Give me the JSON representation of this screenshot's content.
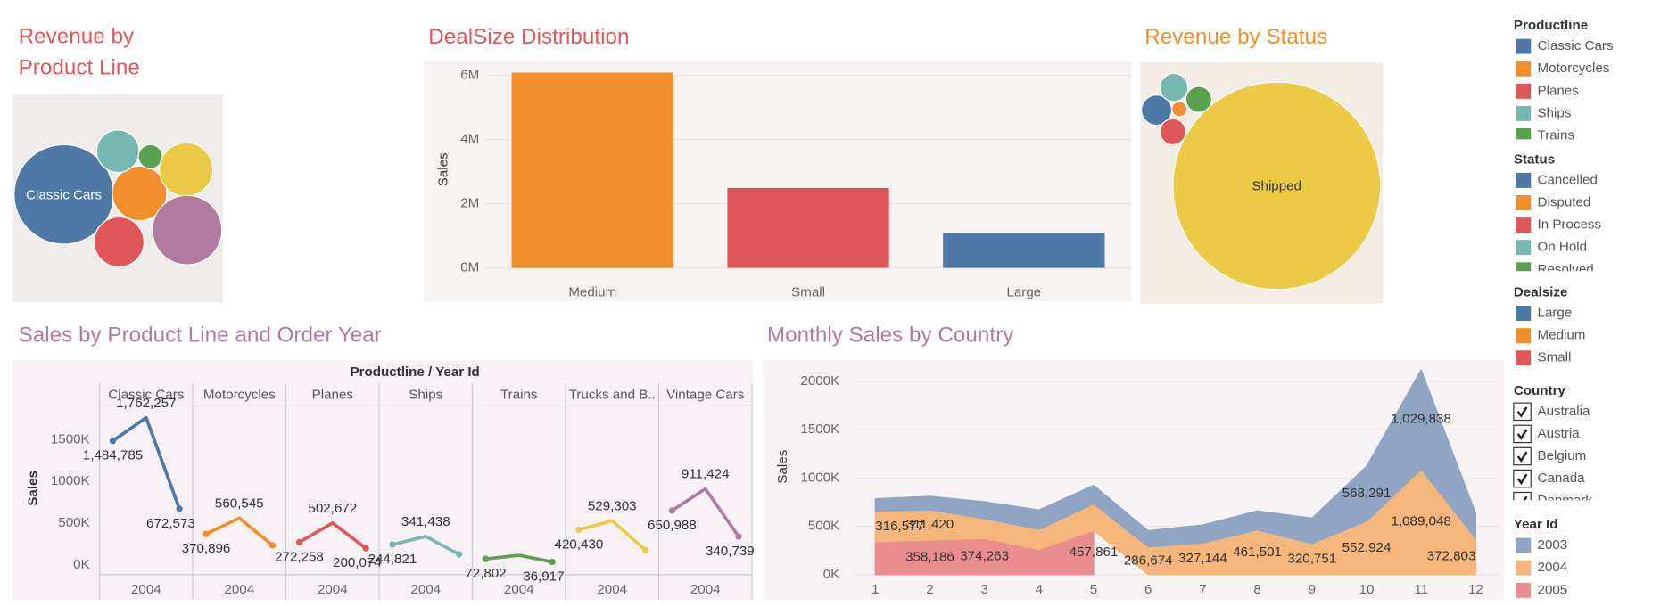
{
  "chart_data": [
    {
      "type": "bubble",
      "title": "Revenue by Product Line",
      "labels": [
        "Classic Cars",
        null,
        null,
        null,
        null,
        null,
        null
      ],
      "values": [
        3900000,
        1170000,
        980000,
        710000,
        230000,
        1130000,
        1900000
      ],
      "colors": [
        "#4e79a7",
        "#f28e2b",
        "#e15759",
        "#76b7b2",
        "#59a14f",
        "#edc948",
        "#b07aa1"
      ]
    },
    {
      "type": "bar",
      "title": "DealSize Distribution",
      "ylabel": "Sales",
      "categories": [
        "Medium",
        "Small",
        "Large"
      ],
      "values": [
        6090000,
        2490000,
        1080000
      ],
      "colors": [
        "#f28e2b",
        "#e15759",
        "#4e79a7"
      ],
      "ylim": [
        -270000,
        6400000
      ],
      "yticks": [
        {
          "value": 0,
          "label": "0M"
        },
        {
          "value": 2000000,
          "label": "2M"
        },
        {
          "value": 4000000,
          "label": "4M"
        },
        {
          "value": 6000000,
          "label": "6M"
        }
      ],
      "grid": true
    },
    {
      "type": "bubble",
      "title": "Revenue by Status",
      "labels": [
        "Shipped",
        null,
        null,
        null,
        null,
        null
      ],
      "values": [
        8600000,
        183000,
        46000,
        134000,
        158000,
        134000
      ],
      "colors": [
        "#edc948",
        "#4e79a7",
        "#f28e2b",
        "#e15759",
        "#76b7b2",
        "#59a14f"
      ]
    },
    {
      "type": "line",
      "title": "Sales by Product Line and Order Year",
      "header": "Productline  /  Year Id",
      "ylabel": "Sales",
      "x": [
        2003,
        2004,
        2005
      ],
      "xlim": [
        2002.6,
        2005.4
      ],
      "xticks": [
        2004
      ],
      "ylim": [
        -116000,
        1900000
      ],
      "yticks": [
        {
          "value": 0,
          "label": "0K"
        },
        {
          "value": 500000,
          "label": "500K"
        },
        {
          "value": 1000000,
          "label": "1000K"
        },
        {
          "value": 1500000,
          "label": "1500K"
        }
      ],
      "grid": false,
      "series": [
        {
          "name": "Classic Cars",
          "color": "#4e79a7",
          "values": [
            1484785,
            1762257,
            672573
          ],
          "value_labels": [
            "1,484,785",
            "1,762,257",
            "672,573"
          ]
        },
        {
          "name": "Motorcycles",
          "color": "#f28e2b",
          "values": [
            370896,
            560545,
            234948
          ],
          "value_labels": [
            "370,896",
            "560,545",
            null
          ]
        },
        {
          "name": "Planes",
          "color": "#e15759",
          "values": [
            272258,
            502672,
            200074
          ],
          "value_labels": [
            "272,258",
            "502,672",
            "200,074"
          ]
        },
        {
          "name": "Ships",
          "color": "#76b7b2",
          "values": [
            244821,
            341438,
            128178
          ],
          "value_labels": [
            "244,821",
            "341,438",
            null
          ]
        },
        {
          "name": "Trains",
          "color": "#59a14f",
          "values": [
            72802,
            116524,
            36917
          ],
          "value_labels": [
            "72,802",
            null,
            "36,917"
          ]
        },
        {
          "name": "Trucks and B..",
          "color": "#edc948",
          "values": [
            420430,
            529303,
            178057
          ],
          "value_labels": [
            "420,430",
            "529,303",
            null
          ]
        },
        {
          "name": "Vintage Cars",
          "color": "#b07aa1",
          "values": [
            650988,
            911424,
            340739
          ],
          "value_labels": [
            "650,988",
            "911,424",
            "340,739"
          ]
        }
      ]
    },
    {
      "type": "area",
      "stacked": true,
      "title": "Monthly Sales by Country",
      "ylabel": "Sales",
      "legend_title": "Year Id",
      "x": [
        1,
        2,
        3,
        4,
        5,
        6,
        7,
        8,
        9,
        10,
        11,
        12
      ],
      "xlim": [
        1,
        12
      ],
      "xticks": [
        1,
        2,
        3,
        4,
        5,
        6,
        7,
        8,
        9,
        10,
        11,
        12
      ],
      "ylim": [
        0,
        2200000
      ],
      "yticks": [
        {
          "value": 0,
          "label": "0K"
        },
        {
          "value": 500000,
          "label": "500K"
        },
        {
          "value": 1000000,
          "label": "1000K"
        },
        {
          "value": 1500000,
          "label": "1500K"
        },
        {
          "value": 2000000,
          "label": "2000K"
        }
      ],
      "grid": true,
      "series": [
        {
          "name": "2003",
          "color": "#8fa5c3",
          "values": [
            129754,
            140836,
            174505,
            201610,
            192673,
            168083,
            187732,
            197810,
            263973,
            568291,
            1029838,
            261876
          ],
          "value_labels": [
            null,
            null,
            null,
            null,
            null,
            null,
            null,
            null,
            null,
            "568,291",
            "1,029,838",
            null
          ]
        },
        {
          "name": "2004",
          "color": "#f4b67a",
          "values": [
            316577,
            311420,
            205734,
            206148,
            273438,
            286674,
            327144,
            461501,
            320751,
            552924,
            1089048,
            372803
          ],
          "value_labels": [
            "316,577",
            "311,420",
            null,
            null,
            null,
            "286,674",
            "327,144",
            "461,501",
            "320,751",
            "552,924",
            "1,089,048",
            "372,803"
          ]
        },
        {
          "name": "2005",
          "color": "#ea8d8e",
          "values": [
            339543,
            358186,
            374263,
            261633,
            457861,
            null,
            null,
            null,
            null,
            null,
            null,
            null
          ],
          "value_labels": [
            null,
            "358,186",
            "374,263",
            null,
            "457,861",
            null,
            null,
            null,
            null,
            null,
            null,
            null
          ]
        }
      ]
    }
  ],
  "legends": [
    {
      "title": "Productline",
      "items": [
        {
          "label": "Classic Cars",
          "color": "#4e79a7"
        },
        {
          "label": "Motorcycles",
          "color": "#f28e2b"
        },
        {
          "label": "Planes",
          "color": "#e15759"
        },
        {
          "label": "Ships",
          "color": "#76b7b2"
        },
        {
          "label": "Trains",
          "color": "#59a14f"
        }
      ]
    },
    {
      "title": "Status",
      "items": [
        {
          "label": "Cancelled",
          "color": "#4e79a7"
        },
        {
          "label": "Disputed",
          "color": "#f28e2b"
        },
        {
          "label": "In Process",
          "color": "#e15759"
        },
        {
          "label": "On Hold",
          "color": "#76b7b2"
        },
        {
          "label": "Resolved",
          "color": "#59a14f"
        }
      ]
    },
    {
      "title": "Dealsize",
      "items": [
        {
          "label": "Large",
          "color": "#4e79a7"
        },
        {
          "label": "Medium",
          "color": "#f28e2b"
        },
        {
          "label": "Small",
          "color": "#e15759"
        }
      ]
    },
    {
      "title": "Country",
      "items": [
        {
          "label": "Australia",
          "checked": true
        },
        {
          "label": "Austria",
          "checked": true
        },
        {
          "label": "Belgium",
          "checked": true
        },
        {
          "label": "Canada",
          "checked": true
        },
        {
          "label": "Denmark",
          "checked": true
        }
      ]
    }
  ]
}
